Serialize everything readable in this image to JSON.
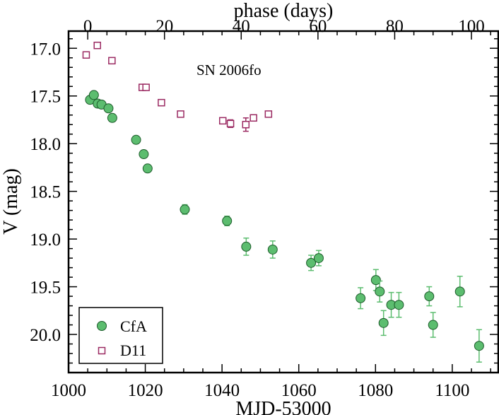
{
  "chart_data": {
    "type": "scatter",
    "title": "",
    "annotation": "SN 2006fo",
    "xlabel": "MJD-53000",
    "x2label": "phase (days)",
    "ylabel": "V (mag)",
    "xlim": [
      1000,
      1112
    ],
    "ylim": [
      20.4,
      16.82
    ],
    "y_inverted": true,
    "x2_offset": 1005,
    "xticks": [
      "1000",
      "1020",
      "1040",
      "1060",
      "1080",
      "1100"
    ],
    "x2ticks": [
      "0",
      "20",
      "40",
      "60",
      "80",
      "100"
    ],
    "yticks": [
      "17.0",
      "17.5",
      "18.0",
      "18.5",
      "19.0",
      "19.5",
      "20.0"
    ],
    "legend_position": "bottom-left",
    "series": [
      {
        "name": "CfA",
        "marker": "circle",
        "color": "#5cbd6f",
        "edge_color": "#1d5b2b",
        "error_color": "#5cbd6f",
        "points": [
          {
            "x": 1005.6,
            "y": 17.54,
            "err": 0.02
          },
          {
            "x": 1006.6,
            "y": 17.49,
            "err": 0.02
          },
          {
            "x": 1007.6,
            "y": 17.58,
            "err": 0.02
          },
          {
            "x": 1008.6,
            "y": 17.59,
            "err": 0.02
          },
          {
            "x": 1010.4,
            "y": 17.63,
            "err": 0.02
          },
          {
            "x": 1011.4,
            "y": 17.73,
            "err": 0.02
          },
          {
            "x": 1017.6,
            "y": 17.96,
            "err": 0.02
          },
          {
            "x": 1019.6,
            "y": 18.11,
            "err": 0.02
          },
          {
            "x": 1020.6,
            "y": 18.26,
            "err": 0.02
          },
          {
            "x": 1030.3,
            "y": 18.69,
            "err": 0.05
          },
          {
            "x": 1041.3,
            "y": 18.81,
            "err": 0.05
          },
          {
            "x": 1046.3,
            "y": 19.08,
            "err": 0.09
          },
          {
            "x": 1053.2,
            "y": 19.11,
            "err": 0.09
          },
          {
            "x": 1063.2,
            "y": 19.25,
            "err": 0.08
          },
          {
            "x": 1065.2,
            "y": 19.2,
            "err": 0.08
          },
          {
            "x": 1076.1,
            "y": 19.62,
            "err": 0.11
          },
          {
            "x": 1080.1,
            "y": 19.43,
            "err": 0.11
          },
          {
            "x": 1081.1,
            "y": 19.55,
            "err": 0.11
          },
          {
            "x": 1082.1,
            "y": 19.88,
            "err": 0.13
          },
          {
            "x": 1084.1,
            "y": 19.69,
            "err": 0.13
          },
          {
            "x": 1086.1,
            "y": 19.69,
            "err": 0.13
          },
          {
            "x": 1094.0,
            "y": 19.6,
            "err": 0.1
          },
          {
            "x": 1095.0,
            "y": 19.9,
            "err": 0.13
          },
          {
            "x": 1102.0,
            "y": 19.55,
            "err": 0.16
          },
          {
            "x": 1107.0,
            "y": 20.12,
            "err": 0.17
          }
        ]
      },
      {
        "name": "D11",
        "marker": "square",
        "color": "#ffffff",
        "edge_color": "#9b2a62",
        "error_color": "#9b2a62",
        "points": [
          {
            "x": 1004.6,
            "y": 17.07,
            "err": 0.0
          },
          {
            "x": 1007.5,
            "y": 16.97,
            "err": 0.0
          },
          {
            "x": 1011.3,
            "y": 17.13,
            "err": 0.0
          },
          {
            "x": 1019.2,
            "y": 17.41,
            "err": 0.0
          },
          {
            "x": 1020.2,
            "y": 17.41,
            "err": 0.0
          },
          {
            "x": 1024.2,
            "y": 17.57,
            "err": 0.0
          },
          {
            "x": 1029.2,
            "y": 17.69,
            "err": 0.0
          },
          {
            "x": 1040.2,
            "y": 17.76,
            "err": 0.0
          },
          {
            "x": 1042.2,
            "y": 17.79,
            "err": 0.04
          },
          {
            "x": 1046.2,
            "y": 17.8,
            "err": 0.07
          },
          {
            "x": 1048.2,
            "y": 17.73,
            "err": 0.03
          },
          {
            "x": 1052.1,
            "y": 17.69,
            "err": 0.03
          }
        ]
      }
    ]
  }
}
